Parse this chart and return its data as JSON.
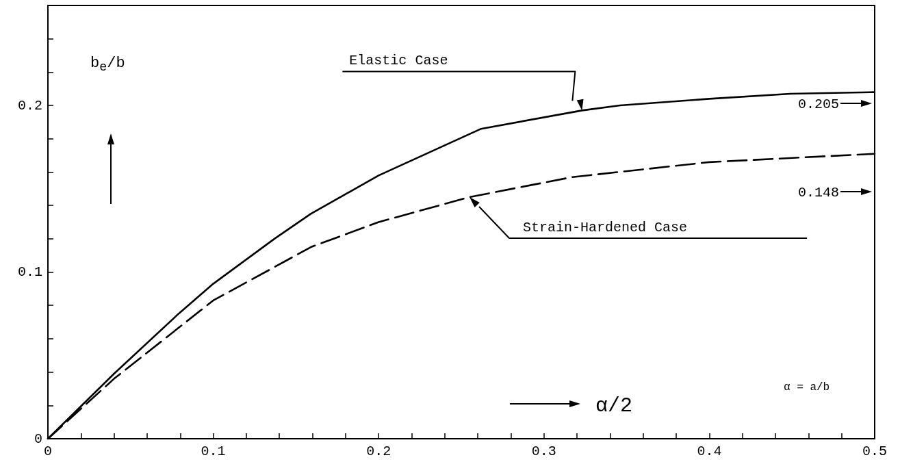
{
  "chart_data": {
    "type": "line",
    "xlabel": "α/2",
    "ylabel": "b$_{e}$/b",
    "xlim": [
      0,
      0.5
    ],
    "ylim": [
      0,
      0.26
    ],
    "xticks": [
      0,
      {
        "value": 0.02,
        "label": null
      },
      {
        "value": 0.04,
        "label": null
      },
      {
        "value": 0.06,
        "label": null
      },
      {
        "value": 0.08,
        "label": null
      },
      0.1,
      {
        "value": 0.12,
        "label": null
      },
      {
        "value": 0.14,
        "label": null
      },
      {
        "value": 0.16,
        "label": null
      },
      {
        "value": 0.18,
        "label": null
      },
      0.2,
      {
        "value": 0.22,
        "label": null
      },
      {
        "value": 0.24,
        "label": null
      },
      {
        "value": 0.26,
        "label": null
      },
      {
        "value": 0.28,
        "label": null
      },
      0.3,
      {
        "value": 0.32,
        "label": null
      },
      {
        "value": 0.34,
        "label": null
      },
      {
        "value": 0.36,
        "label": null
      },
      {
        "value": 0.38,
        "label": null
      },
      0.4,
      {
        "value": 0.42,
        "label": null
      },
      {
        "value": 0.44,
        "label": null
      },
      {
        "value": 0.46,
        "label": null
      },
      {
        "value": 0.48,
        "label": null
      },
      0.5
    ],
    "yticks": [
      0,
      {
        "value": 0.02,
        "label": null
      },
      {
        "value": 0.04,
        "label": null
      },
      {
        "value": 0.06,
        "label": null
      },
      {
        "value": 0.08,
        "label": null
      },
      0.1,
      {
        "value": 0.12,
        "label": null
      },
      {
        "value": 0.14,
        "label": null
      },
      {
        "value": 0.16,
        "label": null
      },
      {
        "value": 0.18,
        "label": null
      },
      0.2,
      {
        "value": 0.22,
        "label": null
      },
      {
        "value": 0.24,
        "label": null
      }
    ],
    "grid": false,
    "marker": "none",
    "series": [
      {
        "name": "Elastic Case",
        "color": "#000000",
        "line_style": "solid",
        "x": [
          0,
          0.04,
          0.079,
          0.1,
          0.137,
          0.159,
          0.2,
          0.262,
          0.323,
          0.346,
          0.4,
          0.449,
          0.5
        ],
        "values": [
          0,
          0.039,
          0.075,
          0.093,
          0.12,
          0.135,
          0.158,
          0.186,
          0.197,
          0.2,
          0.204,
          0.207,
          0.208
        ]
      },
      {
        "name": "Strain-Hardened Case",
        "color": "#000000",
        "line_style": "dashed",
        "x": [
          0,
          0.04,
          0.1,
          0.137,
          0.159,
          0.2,
          0.255,
          0.317,
          0.4,
          0.5
        ],
        "values": [
          0,
          0.036,
          0.083,
          0.103,
          0.115,
          0.13,
          0.145,
          0.157,
          0.166,
          0.171
        ]
      }
    ],
    "annotations": [
      "0.205",
      "0.148",
      "α = a/b"
    ]
  }
}
